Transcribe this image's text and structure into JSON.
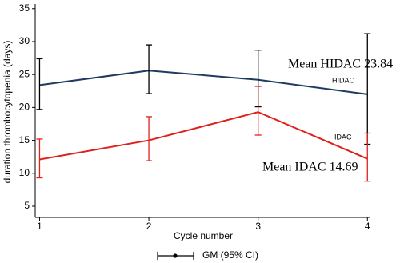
{
  "chart_data": {
    "type": "line",
    "x_label": "Cycle number",
    "y_label": "duration thrombocytopenia (days)",
    "x": [
      1,
      2,
      3,
      4
    ],
    "xlim": [
      0.96,
      4.02
    ],
    "xticks": [
      1,
      2,
      3,
      4
    ],
    "ylim": [
      3.3,
      35.7
    ],
    "yticks": [
      5,
      10,
      15,
      20,
      25,
      30,
      35
    ],
    "grid": false,
    "legend_label": "GM (95% CI)",
    "series": [
      {
        "name": "HIDAC",
        "color": "#1f3a60",
        "values": [
          23.4,
          25.6,
          24.2,
          22.0
        ],
        "lower": [
          19.7,
          22.1,
          20.1,
          14.4
        ],
        "upper": [
          27.4,
          29.5,
          28.7,
          31.2
        ],
        "error_color": "#000000"
      },
      {
        "name": "IDAC",
        "color": "#e0201b",
        "values": [
          12.1,
          15.0,
          19.3,
          12.2
        ],
        "lower": [
          9.3,
          11.9,
          15.8,
          8.8
        ],
        "upper": [
          15.2,
          18.6,
          23.2,
          16.1
        ],
        "error_color": "#e0201b"
      }
    ],
    "annotations": [
      {
        "text": "Mean HIDAC 23.84",
        "color": "#1f3a60"
      },
      {
        "text": "Mean IDAC 14.69",
        "color": "#e0201b"
      }
    ]
  }
}
